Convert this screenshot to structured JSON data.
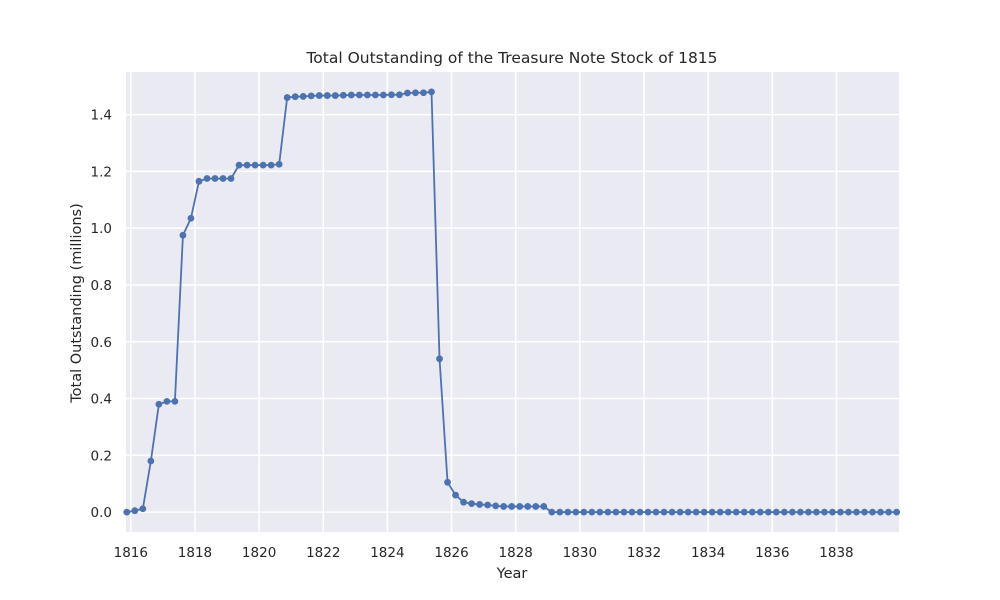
{
  "chart_data": {
    "type": "line",
    "title": "Total Outstanding of the Treasure Note Stock of 1815",
    "xlabel": "Year",
    "ylabel": "Total Outstanding (millions)",
    "xlim": [
      1815.85,
      1839.95
    ],
    "ylim": [
      -0.07,
      1.55
    ],
    "x_ticks": [
      {
        "value": 1816,
        "label": "1816"
      },
      {
        "value": 1818,
        "label": "1818"
      },
      {
        "value": 1820,
        "label": "1820"
      },
      {
        "value": 1822,
        "label": "1822"
      },
      {
        "value": 1824,
        "label": "1824"
      },
      {
        "value": 1826,
        "label": "1826"
      },
      {
        "value": 1828,
        "label": "1828"
      },
      {
        "value": 1830,
        "label": "1830"
      },
      {
        "value": 1832,
        "label": "1832"
      },
      {
        "value": 1834,
        "label": "1834"
      },
      {
        "value": 1836,
        "label": "1836"
      },
      {
        "value": 1838,
        "label": "1838"
      }
    ],
    "y_ticks": [
      {
        "value": 0.0,
        "label": "0.0"
      },
      {
        "value": 0.2,
        "label": "0.2"
      },
      {
        "value": 0.4,
        "label": "0.4"
      },
      {
        "value": 0.6,
        "label": "0.6"
      },
      {
        "value": 0.8,
        "label": "0.8"
      },
      {
        "value": 1.0,
        "label": "1.0"
      },
      {
        "value": 1.2,
        "label": "1.2"
      },
      {
        "value": 1.4,
        "label": "1.4"
      }
    ],
    "grid": true,
    "style": {
      "background": "#eaeaf2",
      "grid_color": "#ffffff",
      "line_color": "#4c72b0"
    },
    "series": [
      {
        "x": [
          1815.875,
          1816.125,
          1816.375,
          1816.625,
          1816.875,
          1817.125,
          1817.375,
          1817.625,
          1817.875,
          1818.125,
          1818.375,
          1818.625,
          1818.875,
          1819.125,
          1819.375,
          1819.625,
          1819.875,
          1820.125,
          1820.375,
          1820.625,
          1820.875,
          1821.125,
          1821.375,
          1821.625,
          1821.875,
          1822.125,
          1822.375,
          1822.625,
          1822.875,
          1823.125,
          1823.375,
          1823.625,
          1823.875,
          1824.125,
          1824.375,
          1824.625,
          1824.875,
          1825.125,
          1825.375,
          1825.625,
          1825.875,
          1826.125,
          1826.375,
          1826.625,
          1826.875,
          1827.125,
          1827.375,
          1827.625,
          1827.875,
          1828.125,
          1828.375,
          1828.625,
          1828.875,
          1829.125,
          1829.375,
          1829.625,
          1829.875,
          1830.125,
          1830.375,
          1830.625,
          1830.875,
          1831.125,
          1831.375,
          1831.625,
          1831.875,
          1832.125,
          1832.375,
          1832.625,
          1832.875,
          1833.125,
          1833.375,
          1833.625,
          1833.875,
          1834.125,
          1834.375,
          1834.625,
          1834.875,
          1835.125,
          1835.375,
          1835.625,
          1835.875,
          1836.125,
          1836.375,
          1836.625,
          1836.875,
          1837.125,
          1837.375,
          1837.625,
          1837.875,
          1838.125,
          1838.375,
          1838.625,
          1838.875,
          1839.125,
          1839.375,
          1839.625,
          1839.875
        ],
        "values": [
          0.0,
          0.005,
          0.012,
          0.18,
          0.38,
          0.39,
          0.39,
          0.975,
          1.035,
          1.165,
          1.175,
          1.175,
          1.175,
          1.175,
          1.222,
          1.222,
          1.222,
          1.222,
          1.222,
          1.225,
          1.46,
          1.463,
          1.464,
          1.466,
          1.467,
          1.467,
          1.467,
          1.468,
          1.469,
          1.469,
          1.469,
          1.469,
          1.469,
          1.47,
          1.47,
          1.476,
          1.477,
          1.477,
          1.48,
          0.54,
          0.105,
          0.06,
          0.035,
          0.03,
          0.027,
          0.025,
          0.022,
          0.02,
          0.02,
          0.02,
          0.02,
          0.02,
          0.02,
          0.0,
          0.0,
          0.0,
          0.0,
          0.0,
          0.0,
          0.0,
          0.0,
          0.0,
          0.0,
          0.0,
          0.0,
          0.0,
          0.0,
          0.0,
          0.0,
          0.0,
          0.0,
          0.0,
          0.0,
          0.0,
          0.0,
          0.0,
          0.0,
          0.0,
          0.0,
          0.0,
          0.0,
          0.0,
          0.0,
          0.0,
          0.0,
          0.0,
          0.0,
          0.0,
          0.0,
          0.0,
          0.0,
          0.0,
          0.0,
          0.0,
          0.0,
          0.0,
          0.0
        ]
      }
    ]
  }
}
